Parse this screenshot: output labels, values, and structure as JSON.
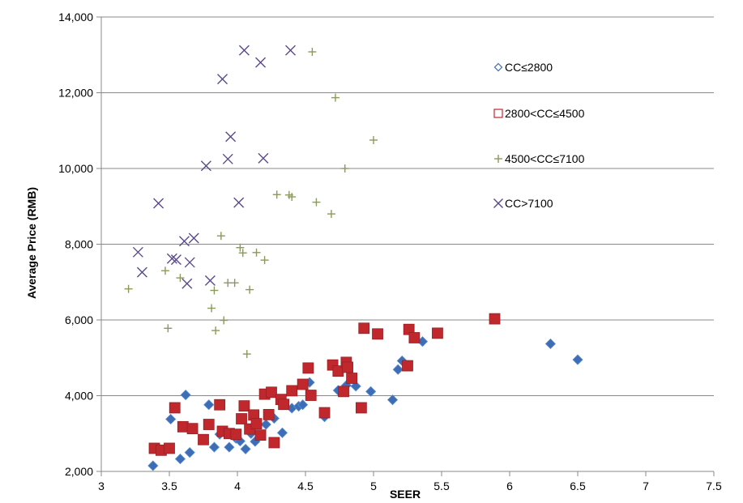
{
  "chart_data": {
    "type": "scatter",
    "xlabel": "SEER",
    "ylabel": "Average Price (RMB)",
    "xlim": [
      3,
      7.5
    ],
    "ylim": [
      2000,
      14000
    ],
    "x_ticks": [
      "3",
      "3.5",
      "4",
      "4.5",
      "5",
      "5.5",
      "6",
      "6.5",
      "7",
      "7.5"
    ],
    "y_ticks": [
      "2,000",
      "4,000",
      "6,000",
      "8,000",
      "10,000",
      "12,000",
      "14,000"
    ],
    "grid": "horizontal",
    "legend_position": "right",
    "series": [
      {
        "name": "CC≤2800",
        "marker": "diamond",
        "color": "#3d6db5",
        "points": [
          [
            3.38,
            2150
          ],
          [
            3.51,
            3380
          ],
          [
            3.58,
            2330
          ],
          [
            3.62,
            4020
          ],
          [
            3.65,
            2500
          ],
          [
            3.79,
            3760
          ],
          [
            3.83,
            2640
          ],
          [
            3.87,
            2980
          ],
          [
            3.94,
            2640
          ],
          [
            3.99,
            2870
          ],
          [
            4.02,
            2800
          ],
          [
            4.06,
            2590
          ],
          [
            4.1,
            3000
          ],
          [
            4.13,
            2790
          ],
          [
            4.21,
            3240
          ],
          [
            4.27,
            3400
          ],
          [
            4.33,
            3020
          ],
          [
            4.4,
            3670
          ],
          [
            4.45,
            3720
          ],
          [
            4.48,
            3760
          ],
          [
            4.53,
            4350
          ],
          [
            4.64,
            3440
          ],
          [
            4.74,
            4140
          ],
          [
            4.8,
            4270
          ],
          [
            4.87,
            4250
          ],
          [
            4.98,
            4110
          ],
          [
            5.14,
            3890
          ],
          [
            5.18,
            4690
          ],
          [
            5.21,
            4920
          ],
          [
            5.36,
            5430
          ],
          [
            6.3,
            5370
          ],
          [
            6.5,
            4950
          ]
        ]
      },
      {
        "name": "2800<CC≤4500",
        "marker": "square",
        "color": "#c0282d",
        "points": [
          [
            3.39,
            2610
          ],
          [
            3.44,
            2560
          ],
          [
            3.5,
            2610
          ],
          [
            3.54,
            3680
          ],
          [
            3.6,
            3180
          ],
          [
            3.67,
            3130
          ],
          [
            3.75,
            2840
          ],
          [
            3.79,
            3240
          ],
          [
            3.87,
            3760
          ],
          [
            3.89,
            3060
          ],
          [
            3.94,
            3000
          ],
          [
            3.99,
            2980
          ],
          [
            4.03,
            3390
          ],
          [
            4.05,
            3730
          ],
          [
            4.09,
            3120
          ],
          [
            4.12,
            3490
          ],
          [
            4.14,
            3260
          ],
          [
            4.17,
            2960
          ],
          [
            4.2,
            4040
          ],
          [
            4.23,
            3500
          ],
          [
            4.25,
            4090
          ],
          [
            4.27,
            2760
          ],
          [
            4.32,
            3900
          ],
          [
            4.34,
            3770
          ],
          [
            4.4,
            4130
          ],
          [
            4.48,
            4300
          ],
          [
            4.52,
            4730
          ],
          [
            4.54,
            4010
          ],
          [
            4.64,
            3550
          ],
          [
            4.7,
            4810
          ],
          [
            4.74,
            4650
          ],
          [
            4.78,
            4110
          ],
          [
            4.8,
            4880
          ],
          [
            4.81,
            4750
          ],
          [
            4.84,
            4460
          ],
          [
            4.91,
            3680
          ],
          [
            4.93,
            5780
          ],
          [
            5.03,
            5630
          ],
          [
            5.26,
            5750
          ],
          [
            5.3,
            5530
          ],
          [
            5.25,
            4790
          ],
          [
            5.47,
            5650
          ],
          [
            5.89,
            6030
          ]
        ]
      },
      {
        "name": "4500<CC≤7100",
        "marker": "plus",
        "color": "#8a9a5b",
        "points": [
          [
            3.2,
            6820
          ],
          [
            3.47,
            7300
          ],
          [
            3.49,
            5780
          ],
          [
            3.58,
            7110
          ],
          [
            3.81,
            6310
          ],
          [
            3.83,
            6780
          ],
          [
            3.84,
            5720
          ],
          [
            3.88,
            8220
          ],
          [
            3.9,
            5990
          ],
          [
            3.93,
            6980
          ],
          [
            3.98,
            6980
          ],
          [
            4.02,
            7910
          ],
          [
            4.04,
            7770
          ],
          [
            4.07,
            5100
          ],
          [
            4.09,
            6800
          ],
          [
            4.14,
            7780
          ],
          [
            4.2,
            7580
          ],
          [
            4.29,
            9310
          ],
          [
            4.38,
            9300
          ],
          [
            4.4,
            9250
          ],
          [
            4.55,
            13080
          ],
          [
            4.58,
            9110
          ],
          [
            4.69,
            8800
          ],
          [
            4.72,
            11870
          ],
          [
            4.79,
            10000
          ],
          [
            5.0,
            10750
          ]
        ]
      },
      {
        "name": "CC>7100",
        "marker": "x",
        "color": "#5b4a8a",
        "points": [
          [
            3.27,
            7790
          ],
          [
            3.3,
            7260
          ],
          [
            3.42,
            9080
          ],
          [
            3.52,
            7620
          ],
          [
            3.55,
            7590
          ],
          [
            3.61,
            8080
          ],
          [
            3.63,
            6960
          ],
          [
            3.65,
            7520
          ],
          [
            3.68,
            8160
          ],
          [
            3.77,
            10070
          ],
          [
            3.8,
            7040
          ],
          [
            3.89,
            12360
          ],
          [
            3.93,
            10250
          ],
          [
            3.95,
            10840
          ],
          [
            4.01,
            9100
          ],
          [
            4.05,
            13120
          ],
          [
            4.17,
            12800
          ],
          [
            4.19,
            10270
          ],
          [
            4.39,
            13120
          ]
        ]
      }
    ]
  }
}
